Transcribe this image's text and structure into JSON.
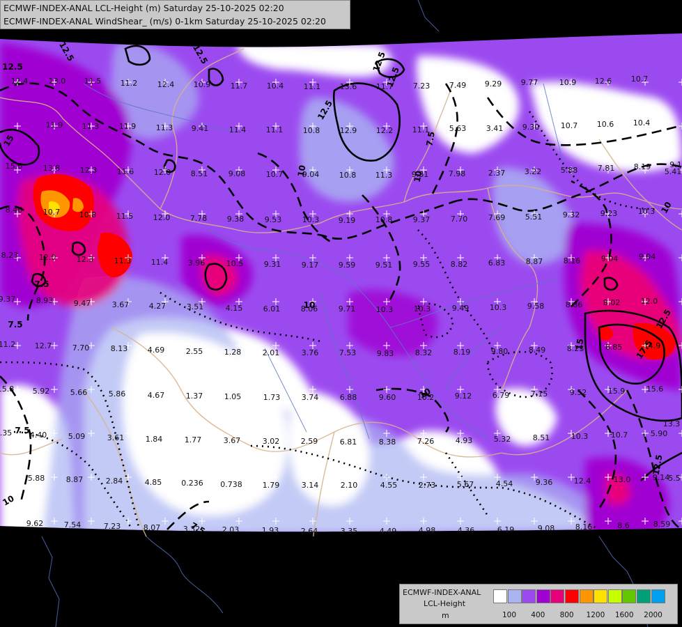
{
  "title": {
    "line1": "ECMWF-INDEX-ANAL LCL-Height (m) Saturday 25-10-2025 02:20",
    "line2": "ECMWF-INDEX-ANAL WindShear_ (m/s) 0-1km Saturday 25-10-2025 02:20"
  },
  "legend": {
    "line1": "ECMWF-INDEX-ANAL",
    "line2": "LCL-Height",
    "line3": "m",
    "colors": [
      "#ffffff",
      "#aab4f2",
      "#9b4af0",
      "#a000d2",
      "#e8007a",
      "#ff0000",
      "#ff9600",
      "#ffe100",
      "#c8ff00",
      "#64c800",
      "#00a078",
      "#00a0f0"
    ],
    "ticks": [
      "100",
      "400",
      "800",
      "1200",
      "1600",
      "2000"
    ]
  },
  "map": {
    "colors": {
      "background": "#000000",
      "low": "#ffffff",
      "lavender": "#aab4f2",
      "violet": "#9b4af0",
      "purple": "#a000d2",
      "magenta": "#e8007a",
      "red": "#ff0000",
      "orange": "#ff9600",
      "yellow": "#ffe100",
      "border": "#d8b48c",
      "river": "#5a78c8",
      "contour": "#000000"
    },
    "values": [
      "12.4",
      "13.0",
      "11.5",
      "11.2",
      "12.4",
      "10.9",
      "11.7",
      "10.4",
      "11.1",
      "13.6",
      "11.7",
      "7.23",
      "7.49",
      "9.29",
      "9.77",
      "10.9",
      "12.6",
      "10.7",
      "11.9",
      "11.3",
      "11.9",
      "11.3",
      "9.41",
      "11.4",
      "11.1",
      "10.8",
      "12.9",
      "12.2",
      "11.1",
      "5.63",
      "3.41",
      "9.30",
      "10.7",
      "10.6",
      "10.4",
      "15.6",
      "13.8",
      "12.3",
      "11.6",
      "12.0",
      "8.51",
      "9.08",
      "10.7",
      "9.04",
      "10.8",
      "11.3",
      "9.81",
      "7.98",
      "2.37",
      "3.22",
      "5.88",
      "7.81",
      "8.19",
      "9.1",
      "8.46",
      "10.7",
      "10.8",
      "11.5",
      "12.0",
      "7.78",
      "9.38",
      "9.53",
      "10.3",
      "9.19",
      "10.8",
      "9.37",
      "7.70",
      "7.69",
      "5.51",
      "9.32",
      "9.23",
      "10.3",
      "8.23",
      "12.0",
      "12.3",
      "11.3",
      "11.4",
      "3.96",
      "10.5",
      "9.31",
      "9.17",
      "9.59",
      "9.51",
      "9.55",
      "8.82",
      "6.83",
      "8.87",
      "8.16",
      "9.04",
      "9.04",
      "9.37",
      "8.93",
      "9.47",
      "3.67",
      "4.27",
      "3.51",
      "4.15",
      "6.01",
      "8.06",
      "9.71",
      "10.3",
      "10.3",
      "9.49",
      "10.3",
      "9.58",
      "8.86",
      "8.02",
      "12.0",
      "11.2",
      "12.7",
      "7.70",
      "8.13",
      "4.69",
      "2.55",
      "1.28",
      "2.01",
      "3.76",
      "7.53",
      "9.83",
      "8.32",
      "8.19",
      "9.80",
      "8.49",
      "8.23",
      "8.85",
      "14.9",
      "15.8",
      "5.92",
      "5.66",
      "5.86",
      "4.67",
      "1.37",
      "1.05",
      "1.73",
      "3.74",
      "6.88",
      "9.60",
      "10.2",
      "9.12",
      "6.79",
      "7.15",
      "9.52",
      "15.9",
      "15.6",
      "7.35",
      "4.40",
      "5.09",
      "3.61",
      "1.84",
      "1.77",
      "3.67",
      "3.02",
      "2.59",
      "6.81",
      "8.38",
      "7.26",
      "4.93",
      "5.32",
      "8.51",
      "10.3",
      "10.7",
      "5.90",
      "5.88",
      "8.87",
      "2.84",
      "4.85",
      "0.236",
      "0.738",
      "1.79",
      "3.14",
      "2.10",
      "4.55",
      "2.73",
      "5.67",
      "4.54",
      "9.36",
      "12.4",
      "13.0",
      "9.14",
      "9.62",
      "7.54",
      "7.23",
      "8.07",
      "3.32",
      "2.03",
      "1.93",
      "2.64",
      "3.35",
      "4.49",
      "4.98",
      "4.36",
      "6.19",
      "9.08",
      "8.16",
      "8.6",
      "8.59",
      "5.5",
      "5.41",
      "13.3",
      "11.8",
      "13.6"
    ],
    "contour_labels": [
      "12.5",
      "12.5",
      "12.5",
      "15",
      "12.5",
      "12.5",
      "12.5",
      "7.5",
      "10",
      "10",
      "10",
      "7.5",
      "7.5",
      "12.5",
      "17.5",
      "15",
      "12.5",
      "10",
      "7.5",
      "10",
      "10",
      "7.5"
    ]
  }
}
